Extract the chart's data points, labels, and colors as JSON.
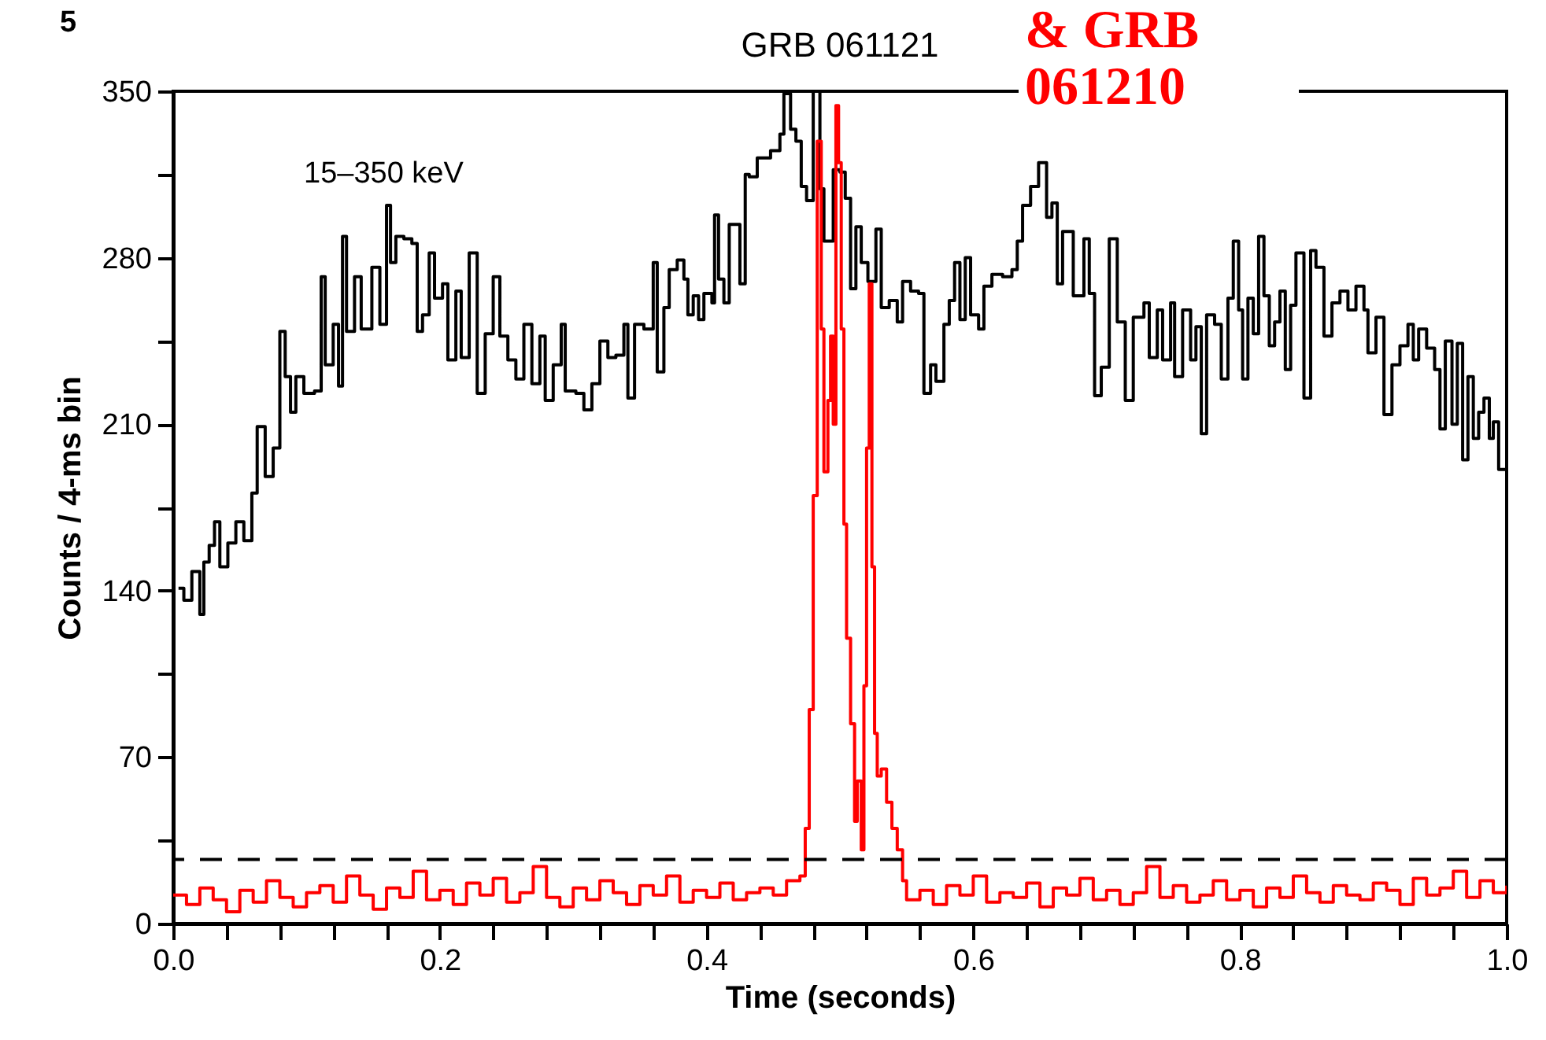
{
  "chart_data": {
    "type": "step",
    "title": "GRB 061121",
    "xlabel": "Time (seconds)",
    "ylabel": "Counts / 4-ms bin",
    "annotations": [
      "& GRB 061210",
      "15–350 keV",
      "5"
    ],
    "xlim": [
      0,
      1
    ],
    "ylim": [
      0,
      350
    ],
    "xticks": [
      {
        "value": 0,
        "label": "0.0"
      },
      {
        "value": 0.04,
        "label": null
      },
      {
        "value": 0.08,
        "label": null
      },
      {
        "value": 0.12,
        "label": null
      },
      {
        "value": 0.16,
        "label": null
      },
      {
        "value": 0.2,
        "label": "0.2"
      },
      {
        "value": 0.24,
        "label": null
      },
      {
        "value": 0.28,
        "label": null
      },
      {
        "value": 0.32,
        "label": null
      },
      {
        "value": 0.36,
        "label": null
      },
      {
        "value": 0.4,
        "label": "0.4"
      },
      {
        "value": 0.44,
        "label": null
      },
      {
        "value": 0.48,
        "label": null
      },
      {
        "value": 0.52,
        "label": null
      },
      {
        "value": 0.56,
        "label": null
      },
      {
        "value": 0.6,
        "label": "0.6"
      },
      {
        "value": 0.64,
        "label": null
      },
      {
        "value": 0.68,
        "label": null
      },
      {
        "value": 0.72,
        "label": null
      },
      {
        "value": 0.76,
        "label": null
      },
      {
        "value": 0.8,
        "label": "0.8"
      },
      {
        "value": 0.84,
        "label": null
      },
      {
        "value": 0.88,
        "label": null
      },
      {
        "value": 0.92,
        "label": null
      },
      {
        "value": 0.96,
        "label": null
      },
      {
        "value": 1,
        "label": "1.0"
      }
    ],
    "yticks": [
      0,
      {
        "value": 35,
        "label": null
      },
      70,
      {
        "value": 105,
        "label": null
      },
      140,
      {
        "value": 175,
        "label": null
      },
      210,
      {
        "value": 245,
        "label": null
      },
      280,
      {
        "value": 315,
        "label": null
      },
      350
    ],
    "ref_lines": [
      {
        "axis": "y",
        "value": 27,
        "color": "#000000",
        "line_style": "dashed"
      }
    ],
    "series": [
      {
        "color": "#000000",
        "x": [
          0.004,
          0.008,
          0.014,
          0.02,
          0.023,
          0.027,
          0.031,
          0.035,
          0.041,
          0.047,
          0.053,
          0.059,
          0.063,
          0.069,
          0.075,
          0.08,
          0.084,
          0.088,
          0.092,
          0.098,
          0.106,
          0.111,
          0.114,
          0.12,
          0.124,
          0.127,
          0.13,
          0.136,
          0.141,
          0.149,
          0.155,
          0.16,
          0.163,
          0.167,
          0.173,
          0.179,
          0.183,
          0.187,
          0.192,
          0.196,
          0.202,
          0.206,
          0.212,
          0.216,
          0.222,
          0.228,
          0.234,
          0.24,
          0.245,
          0.251,
          0.257,
          0.263,
          0.269,
          0.275,
          0.279,
          0.285,
          0.291,
          0.294,
          0.302,
          0.308,
          0.314,
          0.32,
          0.326,
          0.332,
          0.338,
          0.341,
          0.346,
          0.353,
          0.36,
          0.363,
          0.368,
          0.372,
          0.378,
          0.383,
          0.386,
          0.39,
          0.394,
          0.398,
          0.404,
          0.406,
          0.409,
          0.413,
          0.417,
          0.425,
          0.429,
          0.432,
          0.438,
          0.448,
          0.455,
          0.458,
          0.463,
          0.467,
          0.471,
          0.475,
          0.48,
          0.485,
          0.488,
          0.495,
          0.5,
          0.504,
          0.508,
          0.512,
          0.516,
          0.521,
          0.527,
          0.531,
          0.537,
          0.543,
          0.547,
          0.553,
          0.559,
          0.563,
          0.568,
          0.572,
          0.578,
          0.582,
          0.586,
          0.59,
          0.594,
          0.598,
          0.604,
          0.608,
          0.614,
          0.622,
          0.629,
          0.633,
          0.637,
          0.643,
          0.649,
          0.655,
          0.659,
          0.663,
          0.667,
          0.675,
          0.683,
          0.687,
          0.691,
          0.696,
          0.702,
          0.708,
          0.714,
          0.72,
          0.728,
          0.732,
          0.738,
          0.742,
          0.748,
          0.751,
          0.757,
          0.763,
          0.767,
          0.771,
          0.775,
          0.781,
          0.786,
          0.791,
          0.795,
          0.799,
          0.802,
          0.806,
          0.81,
          0.814,
          0.818,
          0.822,
          0.826,
          0.83,
          0.834,
          0.838,
          0.842,
          0.848,
          0.853,
          0.857,
          0.863,
          0.869,
          0.875,
          0.881,
          0.887,
          0.893,
          0.896,
          0.902,
          0.908,
          0.914,
          0.92,
          0.926,
          0.93,
          0.934,
          0.94,
          0.946,
          0.95,
          0.954,
          0.959,
          0.963,
          0.967,
          0.971,
          0.975,
          0.979,
          0.983,
          0.987,
          0.99,
          0.994,
          1
        ],
        "values": [
          141,
          136,
          148,
          130,
          152,
          159,
          169,
          150,
          160,
          169,
          161,
          181,
          209,
          188,
          200,
          249,
          230,
          215,
          230,
          223,
          224,
          272,
          235,
          252,
          226,
          289,
          249,
          272,
          250,
          276,
          252,
          302,
          278,
          289,
          288,
          286,
          249,
          256,
          282,
          263,
          269,
          237,
          266,
          238,
          282,
          223,
          248,
          272,
          247,
          237,
          229,
          252,
          227,
          247,
          220,
          235,
          252,
          224,
          223,
          216,
          227,
          245,
          238,
          239,
          252,
          221,
          252,
          250,
          278,
          232,
          259,
          275,
          279,
          271,
          256,
          264,
          254,
          265,
          261,
          298,
          271,
          261,
          294,
          269,
          315,
          314,
          322,
          325,
          332,
          349,
          334,
          329,
          310,
          304,
          350,
          309,
          287,
          317,
          316,
          305,
          267,
          293,
          278,
          270,
          292,
          259,
          262,
          253,
          270,
          266,
          265,
          223,
          235,
          228,
          252,
          262,
          278,
          254,
          280,
          256,
          250,
          268,
          273,
          272,
          275,
          287,
          302,
          310,
          320,
          297,
          303,
          269,
          291,
          264,
          288,
          265,
          222,
          234,
          288,
          253,
          220,
          255,
          261,
          238,
          258,
          237,
          261,
          230,
          258,
          237,
          251,
          206,
          256,
          252,
          229,
          263,
          287,
          258,
          229,
          263,
          248,
          289,
          264,
          243,
          253,
          266,
          233,
          260,
          282,
          221,
          283,
          276,
          247,
          261,
          266,
          258,
          268,
          258,
          240,
          255,
          214,
          235,
          243,
          252,
          237,
          250,
          242,
          233,
          208,
          245,
          210,
          244,
          195,
          230,
          204,
          215,
          221,
          204,
          211,
          191,
          191
        ]
      },
      {
        "color": "#ff0000",
        "x": [
          0,
          0.01,
          0.02,
          0.03,
          0.04,
          0.05,
          0.06,
          0.07,
          0.08,
          0.09,
          0.1,
          0.11,
          0.12,
          0.13,
          0.14,
          0.15,
          0.16,
          0.17,
          0.18,
          0.19,
          0.2,
          0.21,
          0.22,
          0.23,
          0.24,
          0.25,
          0.26,
          0.27,
          0.28,
          0.29,
          0.3,
          0.31,
          0.32,
          0.33,
          0.34,
          0.35,
          0.36,
          0.37,
          0.38,
          0.39,
          0.4,
          0.41,
          0.42,
          0.43,
          0.44,
          0.45,
          0.46,
          0.47,
          0.474,
          0.477,
          0.48,
          0.483,
          0.486,
          0.488,
          0.491,
          0.493,
          0.495,
          0.497,
          0.499,
          0.501,
          0.503,
          0.505,
          0.508,
          0.511,
          0.513,
          0.516,
          0.518,
          0.52,
          0.522,
          0.524,
          0.526,
          0.528,
          0.531,
          0.535,
          0.539,
          0.543,
          0.547,
          0.55,
          0.56,
          0.57,
          0.58,
          0.59,
          0.6,
          0.61,
          0.62,
          0.63,
          0.64,
          0.65,
          0.66,
          0.67,
          0.68,
          0.69,
          0.7,
          0.71,
          0.72,
          0.73,
          0.74,
          0.75,
          0.76,
          0.77,
          0.78,
          0.79,
          0.8,
          0.81,
          0.82,
          0.83,
          0.84,
          0.85,
          0.86,
          0.87,
          0.88,
          0.89,
          0.9,
          0.91,
          0.92,
          0.93,
          0.94,
          0.95,
          0.96,
          0.97,
          0.98,
          0.99,
          1
        ],
        "values": [
          12,
          8,
          15,
          10,
          5,
          14,
          9,
          18,
          11,
          7,
          13,
          16,
          9,
          20,
          12,
          6,
          15,
          11,
          22,
          10,
          14,
          8,
          17,
          12,
          19,
          9,
          13,
          24,
          11,
          7,
          15,
          10,
          18,
          13,
          8,
          16,
          12,
          20,
          9,
          14,
          11,
          17,
          10,
          13,
          15,
          12,
          18,
          20,
          40,
          90,
          180,
          329,
          250,
          190,
          220,
          247,
          210,
          344,
          320,
          250,
          168,
          120,
          84,
          43,
          60,
          31,
          100,
          200,
          269,
          150,
          80,
          62,
          65,
          51,
          40,
          31,
          18,
          10,
          14,
          8,
          16,
          12,
          20,
          9,
          13,
          11,
          17,
          7,
          15,
          12,
          19,
          10,
          14,
          8,
          13,
          24,
          11,
          16,
          9,
          12,
          18,
          10,
          14,
          7,
          15,
          11,
          20,
          13,
          9,
          16,
          12,
          10,
          17,
          14,
          8,
          19,
          12,
          15,
          22,
          11,
          18,
          13,
          16
        ]
      }
    ]
  }
}
